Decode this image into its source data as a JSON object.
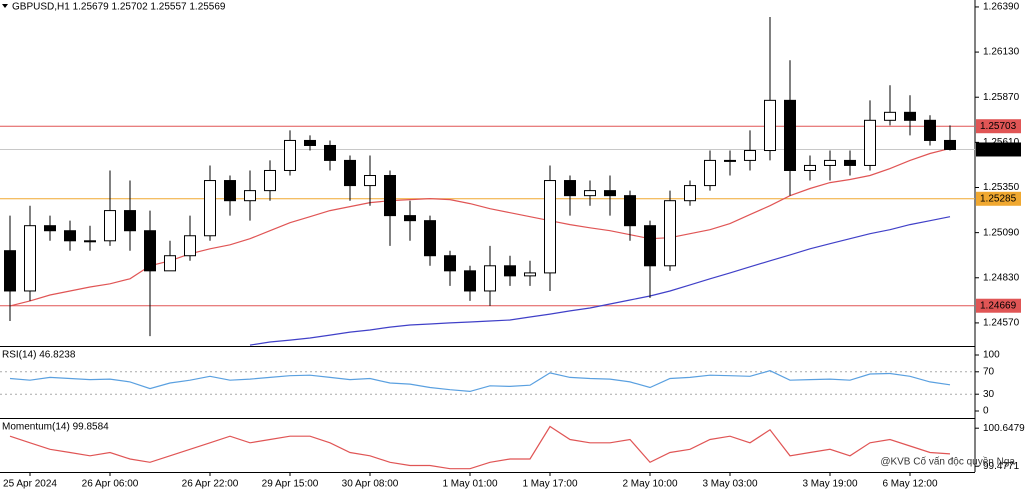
{
  "chart_data": [
    {
      "type": "candlestick",
      "title": "GBPUSD,H1  1.25679 1.25702 1.25557 1.25569",
      "categories": [
        null,
        "25 Apr 2024",
        null,
        null,
        null,
        "26 Apr 06:00",
        null,
        null,
        null,
        null,
        "26 Apr 22:00",
        null,
        null,
        null,
        "29 Apr 15:00",
        null,
        null,
        null,
        "30 Apr 08:00",
        null,
        null,
        null,
        null,
        "1 May 01:00",
        null,
        null,
        null,
        "1 May 17:00",
        null,
        null,
        null,
        null,
        "2 May 10:00",
        null,
        null,
        null,
        "3 May 03:00",
        null,
        null,
        null,
        null,
        "3 May 19:00",
        null,
        null,
        null,
        "6 May 12:00",
        null,
        null
      ],
      "open": [
        1.24986,
        1.24754,
        1.2513,
        1.25101,
        1.25043,
        1.25043,
        1.25217,
        1.25101,
        1.2487,
        1.24957,
        1.25072,
        1.2539,
        1.25274,
        1.25332,
        1.25448,
        1.25621,
        1.25592,
        1.25506,
        1.25361,
        1.25419,
        1.25188,
        1.25159,
        1.24957,
        1.2487,
        1.24754,
        1.24899,
        1.24841,
        1.24858,
        1.2539,
        1.25303,
        1.25332,
        1.25303,
        1.2513,
        1.24899,
        1.25274,
        1.25361,
        1.25506,
        1.25506,
        1.25563,
        1.25852,
        1.25448,
        1.25477,
        1.25506,
        1.25477,
        1.25737,
        1.25783,
        1.25737,
        1.25621
      ],
      "high": [
        1.25188,
        1.25245,
        1.25188,
        1.25159,
        1.2513,
        1.25448,
        1.2539,
        1.25217,
        1.25043,
        1.25188,
        1.25477,
        1.25419,
        1.25448,
        1.25506,
        1.25679,
        1.2565,
        1.25621,
        1.25534,
        1.25534,
        1.25448,
        1.25274,
        1.25188,
        1.24986,
        1.24899,
        1.25014,
        1.24957,
        1.24928,
        1.25477,
        1.25419,
        1.2539,
        1.25419,
        1.25332,
        1.25159,
        1.25332,
        1.2539,
        1.25563,
        1.25563,
        1.25679,
        1.26332,
        1.26083,
        1.25534,
        1.25563,
        1.25563,
        1.25852,
        1.25939,
        1.25881,
        1.25766,
        1.25708
      ],
      "low": [
        1.24581,
        1.24697,
        1.25043,
        1.24986,
        1.24986,
        1.25014,
        1.24986,
        1.24494,
        1.2487,
        1.24928,
        1.25043,
        1.25188,
        1.25159,
        1.25274,
        1.25419,
        1.25563,
        1.25448,
        1.25274,
        1.25245,
        1.25014,
        1.25043,
        1.24899,
        1.24783,
        1.24697,
        1.24668,
        1.24783,
        1.24783,
        1.24754,
        1.25188,
        1.25245,
        1.25188,
        1.25043,
        1.24714,
        1.2487,
        1.25245,
        1.25332,
        1.25419,
        1.25448,
        1.25506,
        1.25303,
        1.2539,
        1.2539,
        1.25419,
        1.25448,
        1.25708,
        1.2565,
        1.25592,
        1.25563
      ],
      "close": [
        1.24754,
        1.2513,
        1.25101,
        1.25043,
        1.25043,
        1.25217,
        1.25101,
        1.2487,
        1.24957,
        1.25072,
        1.2539,
        1.25274,
        1.25332,
        1.25448,
        1.25621,
        1.25592,
        1.25506,
        1.25361,
        1.25419,
        1.25188,
        1.25159,
        1.24957,
        1.2487,
        1.24754,
        1.24899,
        1.24841,
        1.24858,
        1.2539,
        1.25303,
        1.25332,
        1.25303,
        1.2513,
        1.24899,
        1.25274,
        1.25361,
        1.25506,
        1.25506,
        1.25563,
        1.25852,
        1.25448,
        1.25477,
        1.25506,
        1.25477,
        1.25737,
        1.25783,
        1.25737,
        1.25621,
        1.25569
      ],
      "up_color": "#ffffff",
      "down_color": "#000000",
      "series": [
        {
          "color": "#e05555",
          "values": [
            1.24668,
            1.24697,
            1.24731,
            1.24754,
            1.24777,
            1.24795,
            1.24824,
            1.24899,
            1.24928,
            1.24968,
            1.24997,
            1.2502,
            1.25055,
            1.25101,
            1.25147,
            1.25182,
            1.25217,
            1.2524,
            1.25263,
            1.25274,
            1.2528,
            1.25286,
            1.2528,
            1.25257,
            1.25228,
            1.25205,
            1.25182,
            1.25159,
            1.25136,
            1.25118,
            1.25101,
            1.25078,
            1.25055,
            1.25061,
            1.25084,
            1.25107,
            1.25142,
            1.25194,
            1.25245,
            1.25303,
            1.25344,
            1.25378,
            1.25396,
            1.25419,
            1.25459,
            1.25506,
            1.25546,
            1.25575
          ]
        },
        {
          "color": "#4040c8",
          "values": [
            null,
            null,
            null,
            null,
            null,
            null,
            null,
            null,
            null,
            null,
            null,
            null,
            1.24442,
            1.2446,
            1.24471,
            1.24483,
            1.245,
            1.24517,
            1.24529,
            1.24546,
            1.24558,
            1.24564,
            1.2457,
            1.24575,
            1.24581,
            1.24587,
            1.24604,
            1.24621,
            1.24639,
            1.24656,
            1.24679,
            1.24702,
            1.24725,
            1.24754,
            1.24789,
            1.24824,
            1.24858,
            1.24893,
            1.24928,
            1.24962,
            1.24997,
            1.25026,
            1.25055,
            1.25084,
            1.25107,
            1.25136,
            1.25159,
            1.25182
          ]
        }
      ],
      "levels": [
        {
          "value": 1.25703,
          "color": "#e05555"
        },
        {
          "value": 1.25285,
          "color": "#f0a830"
        },
        {
          "value": 1.24669,
          "color": "#e05555"
        }
      ],
      "last_price": {
        "value": 1.25569,
        "color": "#000000"
      },
      "ylim": [
        1.24437,
        1.2643
      ],
      "yticks": [
        {
          "value": 1.2639,
          "label": "1.26390"
        },
        {
          "value": 1.2613,
          "label": "1.26130"
        },
        {
          "value": 1.2587,
          "label": "1.25870"
        },
        {
          "value": 1.2561,
          "label": "1.25610"
        },
        {
          "value": 1.2535,
          "label": "1.25350"
        },
        {
          "value": 1.2509,
          "label": "1.25090"
        },
        {
          "value": 1.2483,
          "label": "1.24830"
        },
        {
          "value": 1.2457,
          "label": "1.24570"
        }
      ]
    },
    {
      "type": "line",
      "title": "RSI(14) 46.8238",
      "color": "#5aa0e0",
      "values": [
        58,
        55,
        60,
        58,
        56,
        57,
        52,
        40,
        50,
        55,
        62,
        55,
        57,
        60,
        63,
        64,
        60,
        56,
        58,
        50,
        48,
        42,
        38,
        35,
        45,
        44,
        46,
        68,
        60,
        58,
        57,
        52,
        42,
        58,
        60,
        64,
        63,
        62,
        72,
        55,
        56,
        57,
        55,
        66,
        67,
        62,
        52,
        46.8238
      ],
      "levels": [
        70,
        30
      ],
      "ylim": [
        -12.5,
        112.5
      ],
      "yticks": [
        100,
        70,
        30,
        0
      ]
    },
    {
      "type": "line",
      "title": "Momentum(14) 99.8584",
      "color": "#e05555",
      "values": [
        100.4,
        100.2,
        100.0,
        99.9,
        99.8,
        99.9,
        99.7,
        99.6,
        99.8,
        100.0,
        100.2,
        100.4,
        100.2,
        100.3,
        100.4,
        100.4,
        100.2,
        99.9,
        99.8,
        99.6,
        99.5,
        99.5,
        99.4,
        99.4,
        99.6,
        99.7,
        99.7,
        100.7,
        100.3,
        100.2,
        100.2,
        100.3,
        99.6,
        99.9,
        100.0,
        100.3,
        100.4,
        100.2,
        100.6,
        99.8,
        99.9,
        100.0,
        99.8,
        100.2,
        100.3,
        100.1,
        99.9,
        99.8584
      ],
      "ylim": [
        99.3,
        100.9
      ],
      "yticks": [
        100.6479,
        99.4771
      ],
      "annotation": "@KVB Cố vấn độc quyền Nga"
    }
  ]
}
